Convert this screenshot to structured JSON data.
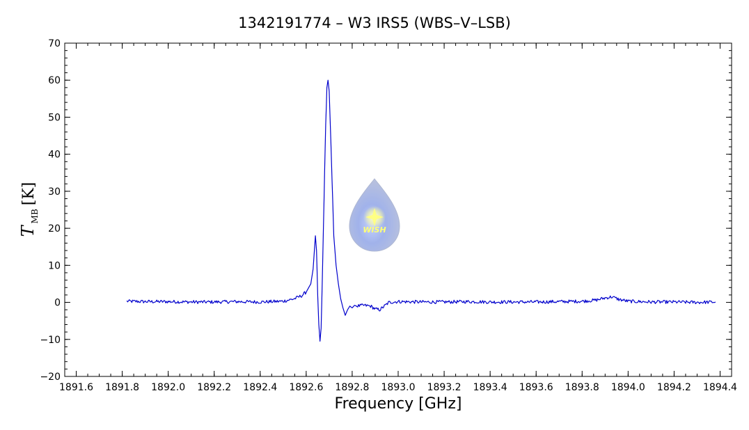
{
  "chart_data": {
    "type": "line",
    "title": "1342191774 – W3 IRS5 (WBS–V–LSB)",
    "xlabel": "Frequency [GHz]",
    "ylabel_symbol": "T",
    "ylabel_subscript": "MB",
    "ylabel_unit": "[K]",
    "xlim": [
      1891.55,
      1894.45
    ],
    "ylim": [
      -20,
      70
    ],
    "x_ticks": [
      "1891.6",
      "1891.8",
      "1892.0",
      "1892.2",
      "1892.4",
      "1892.6",
      "1892.8",
      "1893.0",
      "1893.2",
      "1893.4",
      "1893.6",
      "1893.8",
      "1894.0",
      "1894.2",
      "1894.4"
    ],
    "y_ticks": [
      "−20",
      "−10",
      "0",
      "10",
      "20",
      "30",
      "40",
      "50",
      "60",
      "70"
    ],
    "grid": false,
    "line_color": "#0000cc",
    "series": [
      {
        "x": [
          1891.82,
          1891.9,
          1892.0,
          1892.1,
          1892.2,
          1892.3,
          1892.4,
          1892.5,
          1892.55,
          1892.58,
          1892.6,
          1892.62,
          1892.63,
          1892.64,
          1892.645,
          1892.65,
          1892.655,
          1892.66,
          1892.665,
          1892.67,
          1892.675,
          1892.68,
          1892.685,
          1892.69,
          1892.695,
          1892.7,
          1892.705,
          1892.71,
          1892.715,
          1892.72,
          1892.73,
          1892.74,
          1892.75,
          1892.76,
          1892.77,
          1892.78,
          1892.79,
          1892.8,
          1892.81,
          1892.82,
          1892.85,
          1892.88,
          1892.9,
          1892.92,
          1892.94,
          1892.96,
          1893.0,
          1893.1,
          1893.2,
          1893.3,
          1893.4,
          1893.5,
          1893.6,
          1893.7,
          1893.8,
          1893.86,
          1893.9,
          1893.93,
          1893.96,
          1894.0,
          1894.1,
          1894.2,
          1894.3,
          1894.38
        ],
        "y": [
          0.3,
          0.2,
          0.2,
          0.1,
          0.1,
          0.2,
          0.1,
          0.3,
          1.0,
          1.8,
          2.8,
          5.0,
          9.0,
          18.0,
          14.0,
          2.0,
          -6.0,
          -10.5,
          -7.0,
          6.0,
          20.0,
          35.0,
          48.0,
          58.0,
          60.0,
          57.0,
          48.0,
          38.0,
          28.0,
          18.0,
          10.0,
          5.0,
          1.0,
          -1.5,
          -3.5,
          -2.0,
          -1.0,
          -1.5,
          -0.8,
          -1.0,
          -0.8,
          -1.0,
          -1.8,
          -2.0,
          -1.0,
          0.0,
          0.2,
          0.1,
          0.1,
          0.2,
          0.1,
          0.1,
          0.1,
          0.2,
          0.3,
          0.6,
          1.2,
          1.5,
          0.8,
          0.3,
          0.1,
          0.1,
          0.0,
          0.1
        ]
      }
    ]
  },
  "logo": {
    "label": "WISH"
  }
}
